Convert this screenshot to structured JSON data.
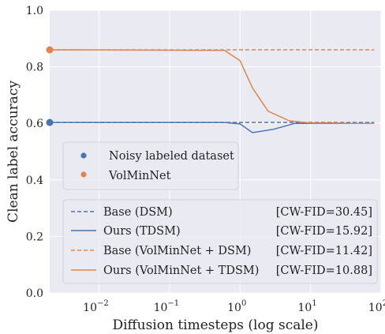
{
  "chart_data": {
    "type": "line",
    "xlabel": "Diffusion timesteps (log scale)",
    "ylabel": "Clean label accuracy",
    "xscale": "log",
    "xlim": [
      0.002,
      100
    ],
    "ylim": [
      0.0,
      1.0
    ],
    "grid": true,
    "x_ticks": [
      {
        "value": 0.01,
        "base": "10",
        "exp": "−2"
      },
      {
        "value": 0.1,
        "base": "10",
        "exp": "−1"
      },
      {
        "value": 1,
        "base": "10",
        "exp": "0"
      },
      {
        "value": 10,
        "base": "10",
        "exp": "1"
      },
      {
        "value": 100,
        "base": "10",
        "exp": "2"
      }
    ],
    "y_ticks": [
      {
        "value": 0.0,
        "label": "0.0"
      },
      {
        "value": 0.2,
        "label": "0.2"
      },
      {
        "value": 0.4,
        "label": "0.4"
      },
      {
        "value": 0.6,
        "label": "0.6"
      },
      {
        "value": 0.8,
        "label": "0.8"
      },
      {
        "value": 1.0,
        "label": "1.0"
      }
    ],
    "colors": {
      "blue": "#4c72b0",
      "orange": "#dd8452"
    },
    "points": [
      {
        "name": "Noisy labeled dataset",
        "x": 0.002,
        "y": 0.603,
        "color": "#4c72b0"
      },
      {
        "name": "VolMinNet",
        "x": 0.002,
        "y": 0.86,
        "color": "#dd8452"
      }
    ],
    "series": [
      {
        "name": "Base (DSM)",
        "annotation": "[CW-FID=30.45]",
        "color": "#4c72b0",
        "dash": true,
        "x": [
          0.002,
          80
        ],
        "y": [
          0.603,
          0.603
        ]
      },
      {
        "name": "Ours (TDSM)",
        "annotation": "[CW-FID=15.92]",
        "color": "#4c72b0",
        "dash": false,
        "x": [
          0.002,
          0.6,
          1.0,
          1.5,
          3.0,
          6.0,
          10,
          20,
          40,
          80
        ],
        "y": [
          0.603,
          0.603,
          0.598,
          0.567,
          0.579,
          0.6,
          0.6,
          0.6,
          0.6,
          0.6
        ]
      },
      {
        "name": "Base (VolMinNet + DSM)",
        "annotation": "[CW-FID=11.42]",
        "color": "#dd8452",
        "dash": true,
        "x": [
          0.002,
          80
        ],
        "y": [
          0.86,
          0.86
        ]
      },
      {
        "name": "Ours (VolMinNet + TDSM)",
        "annotation": "[CW-FID=10.88]",
        "color": "#dd8452",
        "dash": false,
        "x": [
          0.002,
          0.6,
          1.0,
          1.5,
          2.5,
          5.0,
          10,
          20,
          40,
          80
        ],
        "y": [
          0.86,
          0.858,
          0.822,
          0.725,
          0.643,
          0.609,
          0.601,
          0.601,
          0.6,
          0.6
        ]
      }
    ],
    "legend_points_placement": "center-left",
    "legend_lines_placement": "lower-right"
  }
}
